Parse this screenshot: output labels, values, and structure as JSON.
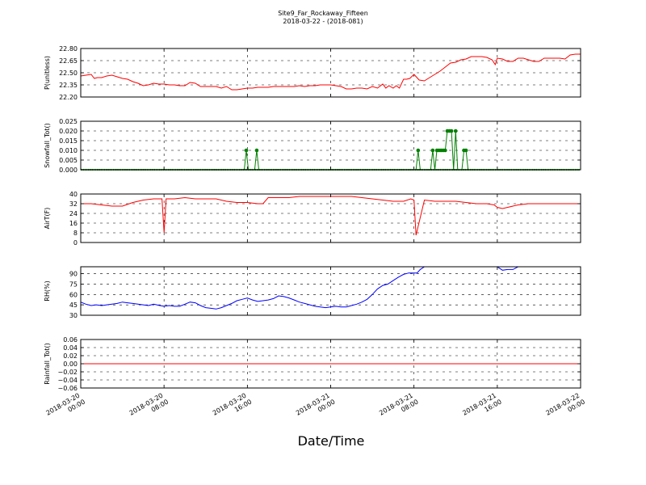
{
  "title": "Site9_Far_Rockaway_Fifteen",
  "subtitle": "2018-03-22 - (2018-081)",
  "xlabel": "Date/Time",
  "x_ticks": [
    {
      "t": 0,
      "l1": "2018-03-20",
      "l2": "00:00"
    },
    {
      "t": 8,
      "l1": "2018-03-20",
      "l2": "08:00"
    },
    {
      "t": 16,
      "l1": "2018-03-20",
      "l2": "16:00"
    },
    {
      "t": 24,
      "l1": "2018-03-21",
      "l2": "00:00"
    },
    {
      "t": 32,
      "l1": "2018-03-21",
      "l2": "08:00"
    },
    {
      "t": 40,
      "l1": "2018-03-21",
      "l2": "16:00"
    },
    {
      "t": 48,
      "l1": "2018-03-22",
      "l2": "00:00"
    }
  ],
  "chart_data": [
    {
      "type": "line",
      "ylabel": "P(unitless)",
      "ylim": [
        22.2,
        22.8
      ],
      "yticks": [
        "22.20",
        "22.35",
        "22.50",
        "22.65",
        "22.80"
      ],
      "ytick_values": [
        22.2,
        22.35,
        22.5,
        22.65,
        22.8
      ],
      "color": "#ff0000",
      "markers": false,
      "grid": true,
      "x": [
        0,
        0.5,
        1,
        1.3,
        1.6,
        2,
        2.5,
        3,
        3.5,
        4,
        4.5,
        5,
        5.5,
        6,
        6.5,
        7,
        7.5,
        8,
        8.5,
        9,
        9.5,
        10,
        10.5,
        11,
        11.5,
        12,
        12.5,
        13,
        13.5,
        14,
        14.5,
        15,
        15.5,
        16,
        16.5,
        17,
        17.5,
        18,
        18.5,
        19,
        19.5,
        20,
        20.5,
        21,
        21.5,
        22,
        22.5,
        23,
        23.5,
        24,
        24.5,
        25,
        25.5,
        26,
        26.5,
        27,
        27.5,
        28,
        28.5,
        29,
        29.3,
        29.6,
        30,
        30.3,
        30.6,
        31,
        31.3,
        31.6,
        32,
        32.5,
        33,
        33.5,
        34,
        34.5,
        35,
        35.5,
        36,
        36.5,
        37,
        37.5,
        38,
        38.5,
        39,
        39.5,
        39.8,
        40,
        40.5,
        41,
        41.5,
        42,
        42.5,
        43,
        43.5,
        44,
        44.5,
        45,
        45.5,
        46,
        46.5,
        47,
        47.5,
        48
      ],
      "y": [
        22.46,
        22.47,
        22.48,
        22.43,
        22.44,
        22.44,
        22.46,
        22.47,
        22.45,
        22.43,
        22.42,
        22.39,
        22.37,
        22.34,
        22.35,
        22.37,
        22.36,
        22.36,
        22.35,
        22.35,
        22.34,
        22.34,
        22.38,
        22.37,
        22.33,
        22.33,
        22.33,
        22.33,
        22.31,
        22.33,
        22.29,
        22.29,
        22.3,
        22.31,
        22.31,
        22.32,
        22.32,
        22.32,
        22.33,
        22.33,
        22.33,
        22.33,
        22.33,
        22.34,
        22.33,
        22.34,
        22.34,
        22.35,
        22.35,
        22.35,
        22.34,
        22.33,
        22.3,
        22.3,
        22.31,
        22.31,
        22.3,
        22.33,
        22.31,
        22.36,
        22.31,
        22.34,
        22.31,
        22.34,
        22.31,
        22.42,
        22.42,
        22.43,
        22.48,
        22.41,
        22.4,
        22.44,
        22.48,
        22.52,
        22.57,
        22.62,
        22.63,
        22.66,
        22.67,
        22.7,
        22.7,
        22.7,
        22.69,
        22.66,
        22.6,
        22.68,
        22.67,
        22.64,
        22.64,
        22.68,
        22.68,
        22.66,
        22.64,
        22.64,
        22.68,
        22.68,
        22.68,
        22.68,
        22.67,
        22.72,
        22.73,
        22.73
      ]
    },
    {
      "type": "line",
      "ylabel": "Snowfall_Tot()",
      "ylim": [
        0,
        0.025
      ],
      "yticks": [
        "0.000",
        "0.005",
        "0.010",
        "0.015",
        "0.020",
        "0.025"
      ],
      "ytick_values": [
        0,
        0.005,
        0.01,
        0.015,
        0.02,
        0.025
      ],
      "color": "#008000",
      "markers": true,
      "grid": true,
      "x": [
        0,
        15.7,
        15.9,
        16.1,
        16.7,
        16.9,
        17.1,
        32.2,
        32.4,
        32.6,
        33.6,
        33.8,
        34.0,
        34.2,
        34.4,
        34.6,
        34.8,
        35.0,
        35.2,
        35.4,
        35.6,
        35.8,
        36.0,
        36.2,
        36.6,
        36.8,
        37.0,
        37.2,
        48
      ],
      "y": [
        0,
        0,
        0.01,
        0,
        0,
        0.01,
        0,
        0,
        0.01,
        0,
        0,
        0.01,
        0,
        0.01,
        0.01,
        0.01,
        0.01,
        0.01,
        0.02,
        0.02,
        0.02,
        0,
        0.02,
        0,
        0,
        0.01,
        0.01,
        0,
        0
      ],
      "visible_markers_only_nonzero": true
    },
    {
      "type": "line",
      "ylabel": "AirT(F)",
      "ylim": [
        0,
        40
      ],
      "yticks": [
        "0",
        "8",
        "16",
        "24",
        "32",
        "40"
      ],
      "ytick_values": [
        0,
        8,
        16,
        24,
        32,
        40
      ],
      "color": "#ff0000",
      "markers": false,
      "grid": true,
      "x": [
        0,
        1,
        2,
        3,
        4,
        5,
        6,
        7,
        7.5,
        7.8,
        8.0,
        8.2,
        9,
        10,
        11,
        12,
        13,
        14,
        15,
        16,
        17,
        17.5,
        18,
        19,
        20,
        21,
        22,
        23,
        24,
        25,
        26,
        27,
        28,
        29,
        30,
        31,
        31.7,
        32.0,
        32.2,
        33,
        34,
        35,
        36,
        37,
        38,
        39,
        39.7,
        40,
        40.5,
        41,
        42,
        43,
        44,
        45,
        46,
        47,
        48
      ],
      "y": [
        32,
        32,
        31,
        30,
        30,
        33,
        35,
        36,
        36,
        36,
        8,
        36,
        36,
        37,
        36,
        36,
        36,
        34,
        33,
        33,
        32,
        32,
        37,
        37,
        37,
        38,
        38,
        38,
        38,
        38,
        38,
        37,
        36,
        35,
        34,
        34,
        36,
        35,
        6,
        35,
        34,
        34,
        34,
        33,
        32,
        32,
        31,
        29,
        28,
        29,
        31,
        32,
        32,
        32,
        32,
        32,
        32
      ]
    },
    {
      "type": "line",
      "ylabel": "RH(%)",
      "ylim": [
        30,
        100
      ],
      "yticks": [
        "30",
        "45",
        "60",
        "75",
        "90"
      ],
      "ytick_values": [
        30,
        45,
        60,
        75,
        90
      ],
      "color": "#0000ff",
      "markers": false,
      "grid": true,
      "x": [
        0,
        0.5,
        1,
        1.5,
        2,
        2.5,
        3,
        3.5,
        4,
        4.5,
        5,
        5.5,
        6,
        6.5,
        7,
        7.3,
        7.6,
        8,
        8.5,
        9,
        9.5,
        10,
        10.5,
        11,
        11.5,
        12,
        12.5,
        13,
        13.5,
        14,
        14.5,
        15,
        15.5,
        16,
        16.5,
        17,
        17.5,
        18,
        18.5,
        19,
        19.5,
        20,
        20.5,
        21,
        21.5,
        22,
        22.5,
        23,
        23.5,
        24,
        24.5,
        25,
        25.5,
        26,
        26.5,
        27,
        27.5,
        28,
        28.5,
        29,
        29.5,
        30,
        30.5,
        31,
        31.5,
        32,
        32.3,
        32.6,
        33,
        40,
        40.5,
        41,
        41.5,
        42
      ],
      "y": [
        49,
        46,
        44,
        45,
        44,
        45,
        46,
        47,
        49,
        48,
        47,
        46,
        45,
        44,
        46,
        45,
        44,
        43,
        44,
        43,
        43,
        46,
        49,
        48,
        44,
        41,
        40,
        39,
        41,
        44,
        47,
        51,
        53,
        55,
        52,
        50,
        51,
        52,
        54,
        58,
        57,
        55,
        52,
        49,
        47,
        45,
        43,
        42,
        41,
        42,
        43,
        42,
        42,
        44,
        46,
        49,
        53,
        60,
        68,
        73,
        75,
        80,
        85,
        89,
        91,
        91,
        91,
        96,
        100,
        100,
        95,
        96,
        96,
        100
      ]
    },
    {
      "type": "line",
      "ylabel": "Rainfall_Tot()",
      "ylim": [
        -0.06,
        0.06
      ],
      "yticks": [
        "−0.06",
        "−0.04",
        "−0.02",
        "0.00",
        "0.02",
        "0.04",
        "0.06"
      ],
      "ytick_values": [
        -0.06,
        -0.04,
        -0.02,
        0,
        0.02,
        0.04,
        0.06
      ],
      "color": "#ff0000",
      "markers": false,
      "grid": true,
      "x": [
        0,
        48
      ],
      "y": [
        0,
        0
      ]
    }
  ]
}
